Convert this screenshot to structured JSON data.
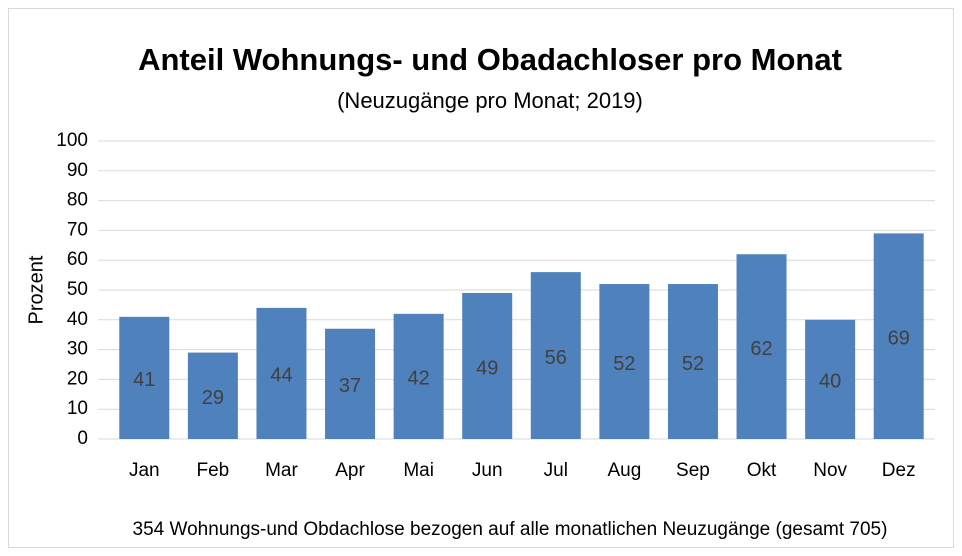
{
  "chart_data": {
    "type": "bar",
    "title": "Anteil Wohnungs- und Obadachloser pro Monat",
    "subtitle": "(Neuzugänge pro Monat; 2019)",
    "y_label": "Prozent",
    "footnote": "354 Wohnungs-und Obdachlose bezogen auf alle monatlichen Neuzugänge (gesamt 705)",
    "categories": [
      "Jan",
      "Feb",
      "Mar",
      "Apr",
      "Mai",
      "Jun",
      "Jul",
      "Aug",
      "Sep",
      "Okt",
      "Nov",
      "Dez"
    ],
    "values": [
      41,
      29,
      44,
      37,
      42,
      49,
      56,
      52,
      52,
      62,
      40,
      69
    ],
    "color": "#4f81bd",
    "ylim": [
      0,
      100
    ],
    "yticks": [
      0,
      10,
      20,
      30,
      40,
      50,
      60,
      70,
      80,
      90,
      100
    ],
    "grid": true
  }
}
